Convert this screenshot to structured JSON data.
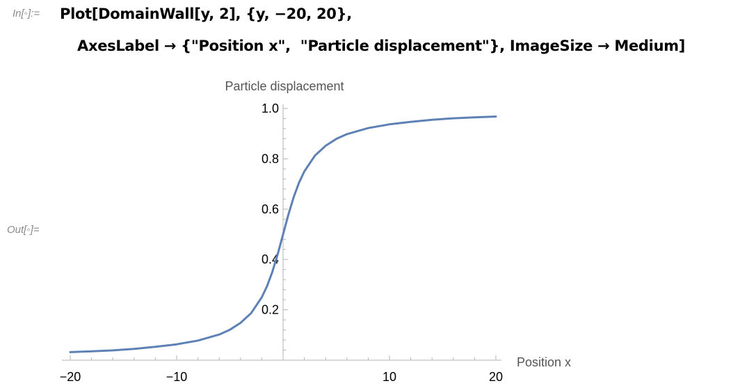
{
  "input_cell": {
    "prompt": "In[◦]:=",
    "code_line1": "Plot[DomainWall[y, 2], {y, −20, 20},",
    "code_line2": "AxesLabel → {\"Position x\",  \"Particle displacement\"}, ImageSize → Medium]"
  },
  "output_cell": {
    "prompt": "Out[◦]="
  },
  "chart_data": {
    "type": "line",
    "title": "",
    "xlabel": "Position x",
    "ylabel": "Particle displacement",
    "xlim": [
      -20,
      20
    ],
    "ylim": [
      0,
      1.0
    ],
    "x_ticks": [
      -20,
      -10,
      10,
      20
    ],
    "x_tick_labels": [
      "−20",
      "−10",
      "10",
      "20"
    ],
    "y_ticks": [
      0.2,
      0.4,
      0.6,
      0.8,
      1.0
    ],
    "y_tick_labels": [
      "0.2",
      "0.4",
      "0.6",
      "0.8",
      "1.0"
    ],
    "grid": false,
    "series": [
      {
        "color": "#5e81b5",
        "x": [
          -20,
          -18,
          -16,
          -14,
          -12,
          -10,
          -8,
          -6,
          -5,
          -4,
          -3,
          -2,
          -1.5,
          -1,
          -0.5,
          0,
          0.5,
          1,
          1.5,
          2,
          3,
          4,
          5,
          6,
          8,
          10,
          12,
          14,
          16,
          18,
          20
        ],
        "y": [
          0.032,
          0.035,
          0.039,
          0.045,
          0.053,
          0.063,
          0.078,
          0.102,
          0.121,
          0.148,
          0.187,
          0.25,
          0.295,
          0.352,
          0.422,
          0.5,
          0.578,
          0.648,
          0.705,
          0.75,
          0.813,
          0.852,
          0.879,
          0.898,
          0.922,
          0.937,
          0.947,
          0.955,
          0.961,
          0.965,
          0.968
        ]
      }
    ]
  }
}
